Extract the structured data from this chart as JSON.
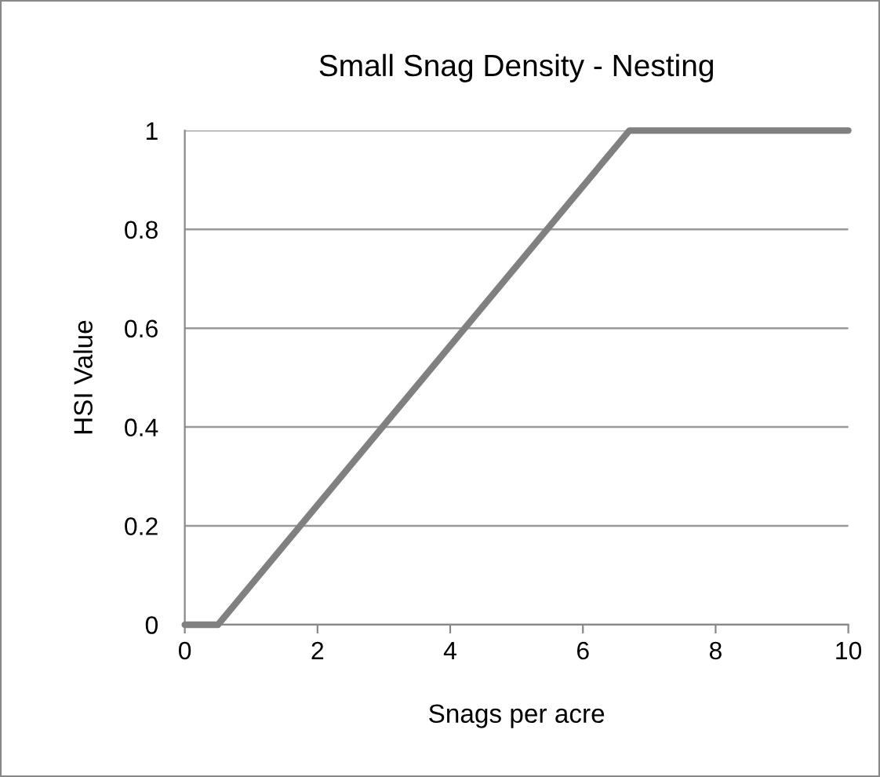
{
  "chart_data": {
    "type": "line",
    "title": "Small Snag Density - Nesting",
    "xlabel": "Snags per acre",
    "ylabel": "HSI Value",
    "series": [
      {
        "color": "#808080",
        "x": [
          0,
          0.5,
          6.7,
          10
        ],
        "values": [
          0,
          0,
          1,
          1
        ]
      }
    ],
    "xlim": [
      0,
      10
    ],
    "xticks": [
      0,
      2,
      4,
      6,
      8,
      10
    ],
    "ylim": [
      0,
      1
    ],
    "yticks": [
      0,
      0.2,
      0.4,
      0.6,
      0.8,
      1
    ],
    "grid": "y",
    "legend": false,
    "marker": "none",
    "line_style": "solid"
  }
}
